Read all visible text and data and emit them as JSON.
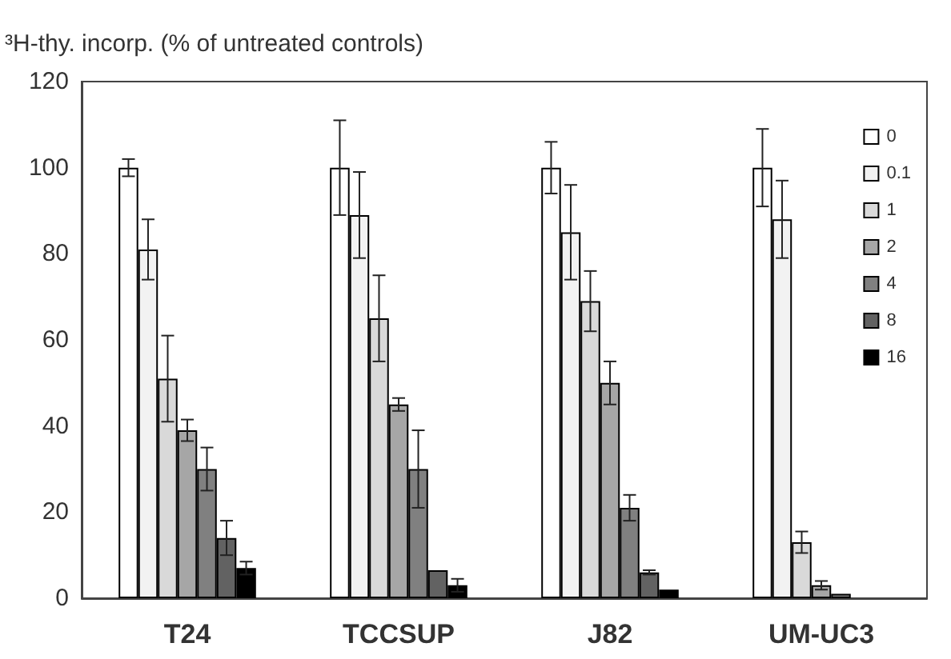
{
  "chart_data": {
    "type": "bar",
    "ylabel": "³H-thy. incorp. (% of untreated controls)",
    "categories": [
      "T24",
      "TCCSUP",
      "J82",
      "UM-UC3"
    ],
    "series": [
      {
        "name": "0",
        "color": "#ffffff",
        "values": [
          100,
          100,
          100,
          100
        ],
        "errors": [
          2,
          11,
          6,
          9
        ]
      },
      {
        "name": "0.1",
        "color": "#f2f2f2",
        "values": [
          81,
          89,
          85,
          88
        ],
        "errors": [
          7,
          10,
          11,
          9
        ]
      },
      {
        "name": "1",
        "color": "#d9d9d9",
        "values": [
          51,
          65,
          69,
          13
        ],
        "errors": [
          10,
          10,
          7,
          2.5
        ]
      },
      {
        "name": "2",
        "color": "#a6a6a6",
        "values": [
          39,
          45,
          50,
          3
        ],
        "errors": [
          2.5,
          1.5,
          5,
          1
        ]
      },
      {
        "name": "4",
        "color": "#808080",
        "values": [
          30,
          30,
          21,
          1
        ],
        "errors": [
          5,
          9,
          3,
          null
        ]
      },
      {
        "name": "8",
        "color": "#626262",
        "values": [
          14,
          6.5,
          6,
          null
        ],
        "errors": [
          4,
          null,
          0.5,
          null
        ]
      },
      {
        "name": "16",
        "color": "#000000",
        "values": [
          7,
          3,
          2,
          null
        ],
        "errors": [
          1.5,
          1.5,
          null,
          null
        ]
      }
    ],
    "ylim": [
      0,
      120
    ],
    "yticks": [
      0,
      20,
      40,
      60,
      80,
      100,
      120
    ],
    "grid": false,
    "legend": "top right"
  }
}
